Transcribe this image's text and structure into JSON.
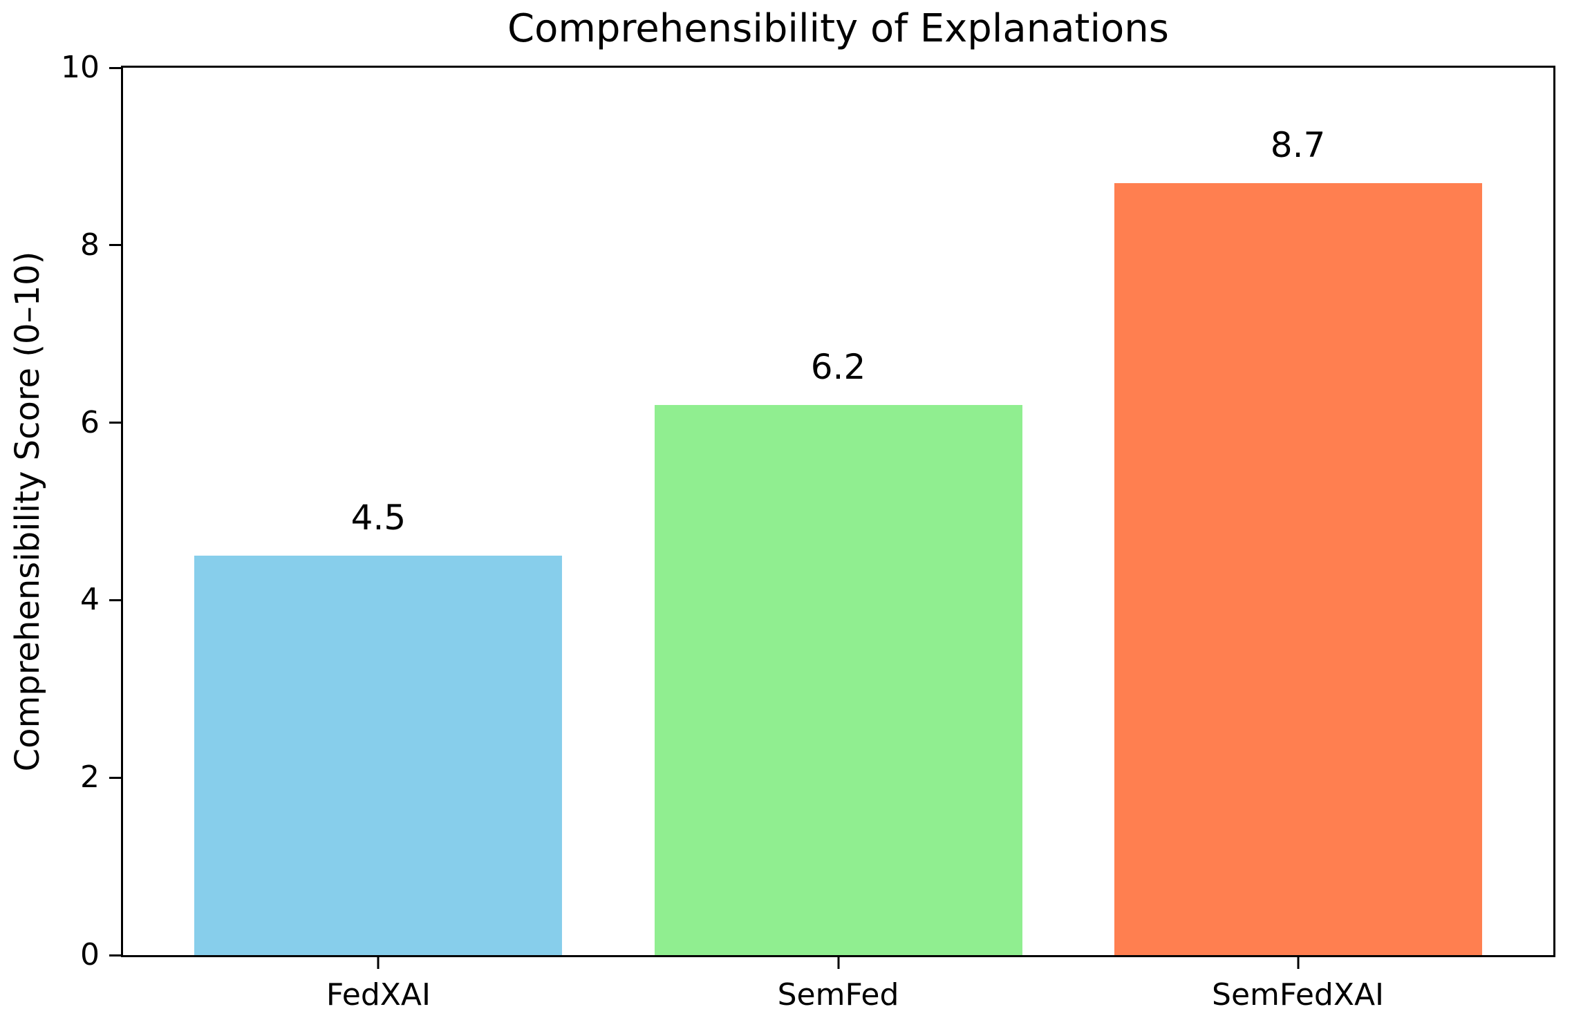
{
  "chart_data": {
    "type": "bar",
    "title": "Comprehensibility of Explanations",
    "xlabel": "",
    "ylabel": "Comprehensibility Score (0–10)",
    "categories": [
      "FedXAI",
      "SemFed",
      "SemFedXAI"
    ],
    "values": [
      4.5,
      6.2,
      8.7
    ],
    "value_labels": [
      "4.5",
      "6.2",
      "8.7"
    ],
    "bar_colors": [
      "#87CEEB",
      "#90EE90",
      "#FF7F50"
    ],
    "ylim": [
      0,
      10
    ],
    "yticks": [
      0,
      2,
      4,
      6,
      8,
      10
    ],
    "ytick_labels": [
      "0",
      "2",
      "4",
      "6",
      "8",
      "10"
    ],
    "bar_width_fraction": 0.8,
    "grid": false,
    "legend_position": "none",
    "background_color": "#ffffff",
    "spine_color": "#000000",
    "text_color": "#000000"
  }
}
